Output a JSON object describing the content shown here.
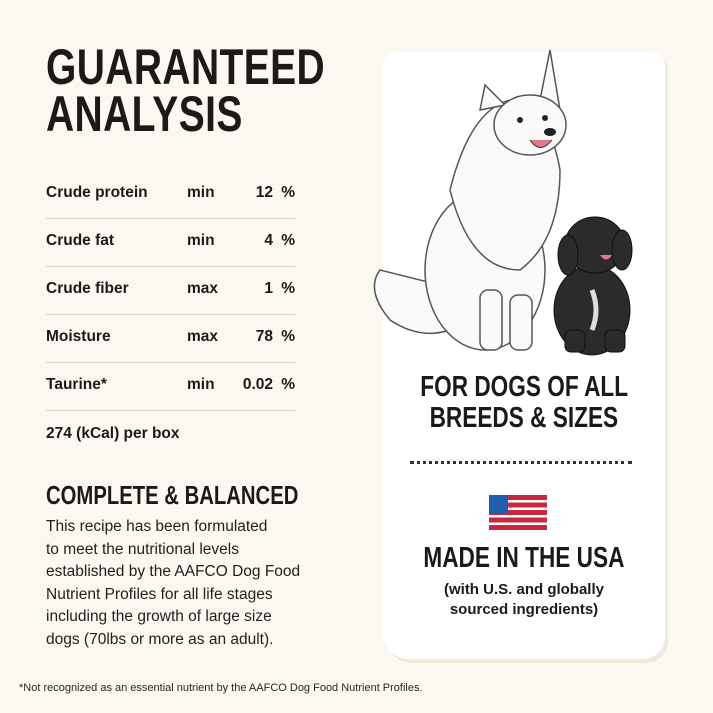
{
  "title": [
    "GUARANTEED",
    "ANALYSIS"
  ],
  "analysis": [
    {
      "nutrient": "Crude protein",
      "qualifier": "min",
      "value": "12",
      "unit": "%"
    },
    {
      "nutrient": "Crude fat",
      "qualifier": "min",
      "value": "4",
      "unit": "%"
    },
    {
      "nutrient": "Crude fiber",
      "qualifier": "max",
      "value": "1",
      "unit": "%"
    },
    {
      "nutrient": "Moisture",
      "qualifier": "max",
      "value": "78",
      "unit": "%"
    },
    {
      "nutrient": "Taurine*",
      "qualifier": "min",
      "value": "0.02",
      "unit": "%"
    }
  ],
  "kcal": "274 (kCal) per box",
  "complete": {
    "heading": "COMPLETE & BALANCED",
    "lines": [
      "This recipe has been formulated",
      "to meet the nutritional levels",
      "established by the AAFCO Dog Food",
      "Nutrient Profiles for all life stages",
      "including the growth of large size",
      "dogs (70lbs or more as an adult)."
    ]
  },
  "card": {
    "dogs_heading": [
      "FOR DOGS OF ALL",
      "BREEDS & SIZES"
    ],
    "usa_heading": "MADE IN THE USA",
    "usa_sub": [
      "(with U.S. and globally",
      "sourced ingredients)"
    ],
    "flag_colors": {
      "blue": "#1f5fae",
      "red": "#c8283f"
    }
  },
  "footnote": "*Not recognized as an essential nutrient by the AAFCO Dog Food Nutrient Profiles."
}
